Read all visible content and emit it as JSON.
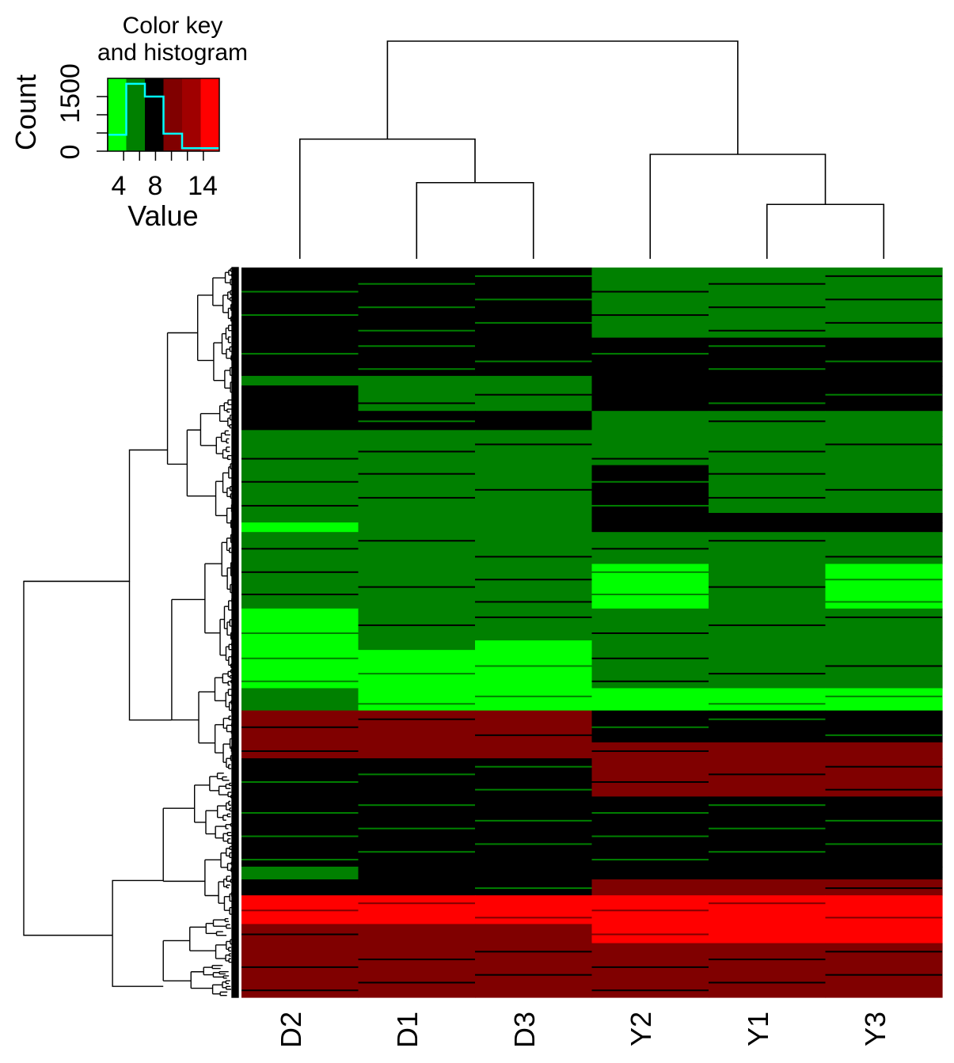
{
  "colors": {
    "very_low": "#00ff00",
    "low": "#008000",
    "mid": "#000000",
    "high": "#800000",
    "very_high": "#ff0000",
    "histogram_line": "#00ffff"
  },
  "color_key": {
    "title_line1": "Color key",
    "title_line2": "and histogram",
    "ylabel": "Count",
    "y_ticks": [
      "0",
      "1500"
    ],
    "xlabel": "Value",
    "x_ticks": [
      "4",
      "8",
      "14"
    ]
  },
  "chart_data": {
    "type": "heatmap",
    "title": "Color key and histogram",
    "columns": [
      "D2",
      "D1",
      "D3",
      "Y2",
      "Y1",
      "Y3"
    ],
    "color_scale": {
      "range": [
        2,
        16
      ],
      "breaks": [
        2,
        4.33,
        6.67,
        9,
        11.33,
        13.67,
        16
      ],
      "colors": [
        "#00ff00",
        "#008000",
        "#000000",
        "#800000",
        "#ff0000"
      ]
    },
    "histogram": {
      "xlabel": "Value",
      "ylabel": "Count",
      "ylim": [
        0,
        2000
      ],
      "bins": [
        2,
        4.33,
        6.67,
        9,
        11.33,
        13.67,
        16
      ],
      "counts": [
        450,
        1850,
        1500,
        480,
        80,
        80
      ]
    },
    "column_dendrogram": {
      "merges": [
        [
          1,
          2,
          0.35
        ],
        [
          4,
          5,
          0.25
        ],
        [
          0,
          6,
          0.55
        ],
        [
          3,
          7,
          0.48
        ],
        [
          8,
          9,
          1.0
        ]
      ]
    },
    "row_band_weights": [
      22,
      12,
      3,
      8,
      6,
      2,
      9,
      15,
      3,
      3,
      10,
      14,
      10,
      3,
      12,
      7,
      10,
      5,
      12,
      22,
      4,
      5,
      9,
      6,
      17
    ],
    "row_bands": [
      [
        "mid",
        "mid",
        "mid",
        "low",
        "low",
        "low"
      ],
      [
        "mid",
        "mid",
        "mid",
        "mid",
        "mid",
        "mid"
      ],
      [
        "low",
        "low",
        "low",
        "mid",
        "mid",
        "mid"
      ],
      [
        "mid",
        "low",
        "low",
        "mid",
        "mid",
        "mid"
      ],
      [
        "mid",
        "mid",
        "mid",
        "low",
        "low",
        "low"
      ],
      [
        "low",
        "low",
        "low",
        "low",
        "low",
        "low"
      ],
      [
        "low",
        "low",
        "low",
        "low",
        "low",
        "low"
      ],
      [
        "low",
        "low",
        "low",
        "mid",
        "low",
        "low"
      ],
      [
        "low",
        "low",
        "low",
        "mid",
        "mid",
        "mid"
      ],
      [
        "very_low",
        "low",
        "low",
        "mid",
        "mid",
        "mid"
      ],
      [
        "low",
        "low",
        "low",
        "low",
        "low",
        "low"
      ],
      [
        "low",
        "low",
        "low",
        "very_low",
        "low",
        "very_low"
      ],
      [
        "very_low",
        "low",
        "low",
        "low",
        "low",
        "low"
      ],
      [
        "very_low",
        "low",
        "very_low",
        "low",
        "low",
        "low"
      ],
      [
        "very_low",
        "very_low",
        "very_low",
        "low",
        "low",
        "low"
      ],
      [
        "low",
        "very_low",
        "very_low",
        "very_low",
        "very_low",
        "very_low"
      ],
      [
        "high",
        "high",
        "high",
        "mid",
        "mid",
        "mid"
      ],
      [
        "high",
        "high",
        "high",
        "high",
        "high",
        "high"
      ],
      [
        "mid",
        "mid",
        "mid",
        "high",
        "high",
        "high"
      ],
      [
        "mid",
        "mid",
        "mid",
        "mid",
        "mid",
        "mid"
      ],
      [
        "low",
        "mid",
        "mid",
        "mid",
        "mid",
        "mid"
      ],
      [
        "mid",
        "mid",
        "mid",
        "high",
        "high",
        "high"
      ],
      [
        "very_high",
        "very_high",
        "very_high",
        "very_high",
        "very_high",
        "very_high"
      ],
      [
        "high",
        "high",
        "high",
        "very_high",
        "very_high",
        "very_high"
      ],
      [
        "high",
        "high",
        "high",
        "high",
        "high",
        "high"
      ]
    ],
    "row_dendrogram": {
      "branches": [
        [
          "a",
          0.92,
          0.42,
          0.84,
          1.0
        ],
        [
          "b",
          0.84,
          0.22,
          0.78,
          0.9
        ],
        [
          "c",
          0.9,
          0.26,
          0.9,
          0.55
        ],
        [
          "d",
          0.8,
          0.03,
          0.72,
          0.7
        ],
        [
          "e",
          0.72,
          0.51,
          0.65,
          0.8
        ],
        [
          "f",
          0.65,
          0.45,
          0.58,
          0.6
        ],
        [
          "g",
          0.65,
          0.62,
          0.55,
          0.75
        ],
        [
          "h",
          0.82,
          0.84,
          0.77,
          0.85
        ],
        [
          "i",
          0.77,
          0.76,
          0.7,
          0.9
        ],
        [
          "j",
          0.77,
          0.92,
          0.7,
          0.95
        ]
      ]
    }
  }
}
